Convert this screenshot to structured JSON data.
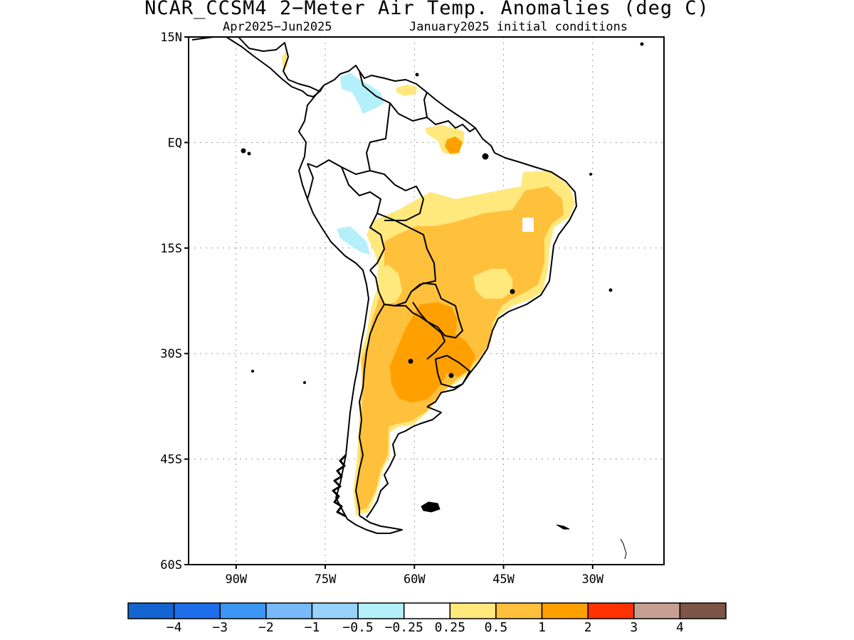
{
  "title": "NCAR_CCSM4 2−Meter Air Temp. Anomalies (deg C)",
  "subtitle_left": "Apr2025−Jun2025",
  "subtitle_right": "January2025 initial conditions",
  "map": {
    "lon_range": [
      -98,
      -18
    ],
    "lat_range": [
      -60,
      15
    ],
    "lat_ticks": [
      {
        "value": 15,
        "label": "15N"
      },
      {
        "value": 0,
        "label": "EQ"
      },
      {
        "value": -15,
        "label": "15S"
      },
      {
        "value": -30,
        "label": "30S"
      },
      {
        "value": -45,
        "label": "45S"
      },
      {
        "value": -60,
        "label": "60S"
      }
    ],
    "lon_ticks": [
      {
        "value": -90,
        "label": "90W"
      },
      {
        "value": -75,
        "label": "75W"
      },
      {
        "value": -60,
        "label": "60W"
      },
      {
        "value": -45,
        "label": "45W"
      },
      {
        "value": -30,
        "label": "30W"
      }
    ],
    "grid": true,
    "land_outline_color": "#000000"
  },
  "colorbar": {
    "colors": [
      "#1464d2",
      "#1e6eeb",
      "#3c96f5",
      "#78b9fa",
      "#96d2fa",
      "#b4f0fa",
      "#ffffff",
      "#ffe87c",
      "#ffc03c",
      "#ffa000",
      "#ff3200",
      "#c8a092",
      "#7d5546"
    ],
    "labels": [
      "−4",
      "−3",
      "−2",
      "−1",
      "−0.5",
      "−0.25",
      "0.25",
      "0.5",
      "1",
      "2",
      "3",
      "4"
    ]
  }
}
